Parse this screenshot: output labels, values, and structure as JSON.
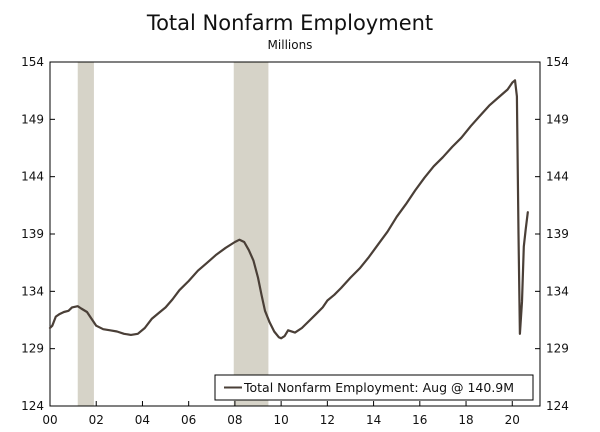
{
  "chart_data": {
    "type": "line",
    "title": "Total Nonfarm Employment",
    "subtitle": "Millions",
    "xlabel": "",
    "ylabel": "",
    "xlim": [
      2000.0,
      2021.2
    ],
    "ylim": [
      124,
      154
    ],
    "y_ticks": [
      124,
      129,
      134,
      139,
      144,
      149,
      154
    ],
    "x_ticks": [
      {
        "value": 2000,
        "label": "00"
      },
      {
        "value": 2002,
        "label": "02"
      },
      {
        "value": 2004,
        "label": "04"
      },
      {
        "value": 2006,
        "label": "06"
      },
      {
        "value": 2008,
        "label": "08"
      },
      {
        "value": 2010,
        "label": "10"
      },
      {
        "value": 2012,
        "label": "12"
      },
      {
        "value": 2014,
        "label": "14"
      },
      {
        "value": 2016,
        "label": "16"
      },
      {
        "value": 2018,
        "label": "18"
      },
      {
        "value": 2020,
        "label": "20"
      }
    ],
    "grid": false,
    "dual_y_axis": true,
    "legend_position": "bottom-right",
    "recessions": [
      {
        "start": 2001.2,
        "end": 2001.9
      },
      {
        "start": 2007.95,
        "end": 2009.45
      }
    ],
    "series": [
      {
        "name": "Total Nonfarm Employment: Aug @ 140.9M",
        "color": "#4a3f37",
        "points": [
          [
            2000.0,
            130.8
          ],
          [
            2000.1,
            131.0
          ],
          [
            2000.25,
            131.8
          ],
          [
            2000.4,
            132.0
          ],
          [
            2000.6,
            132.2
          ],
          [
            2000.8,
            132.3
          ],
          [
            2000.95,
            132.6
          ],
          [
            2001.2,
            132.7
          ],
          [
            2001.35,
            132.5
          ],
          [
            2001.6,
            132.2
          ],
          [
            2001.8,
            131.6
          ],
          [
            2002.0,
            131.0
          ],
          [
            2002.3,
            130.7
          ],
          [
            2002.6,
            130.6
          ],
          [
            2002.9,
            130.5
          ],
          [
            2003.2,
            130.3
          ],
          [
            2003.5,
            130.2
          ],
          [
            2003.8,
            130.3
          ],
          [
            2004.1,
            130.8
          ],
          [
            2004.4,
            131.6
          ],
          [
            2004.7,
            132.1
          ],
          [
            2005.0,
            132.6
          ],
          [
            2005.3,
            133.3
          ],
          [
            2005.6,
            134.1
          ],
          [
            2006.0,
            134.9
          ],
          [
            2006.4,
            135.8
          ],
          [
            2006.8,
            136.5
          ],
          [
            2007.2,
            137.2
          ],
          [
            2007.6,
            137.8
          ],
          [
            2008.0,
            138.3
          ],
          [
            2008.2,
            138.5
          ],
          [
            2008.4,
            138.3
          ],
          [
            2008.6,
            137.6
          ],
          [
            2008.8,
            136.7
          ],
          [
            2009.0,
            135.2
          ],
          [
            2009.15,
            133.7
          ],
          [
            2009.3,
            132.3
          ],
          [
            2009.5,
            131.3
          ],
          [
            2009.7,
            130.5
          ],
          [
            2009.9,
            130.0
          ],
          [
            2010.0,
            129.9
          ],
          [
            2010.15,
            130.1
          ],
          [
            2010.3,
            130.6
          ],
          [
            2010.6,
            130.4
          ],
          [
            2010.9,
            130.8
          ],
          [
            2011.2,
            131.4
          ],
          [
            2011.5,
            132.0
          ],
          [
            2011.8,
            132.6
          ],
          [
            2012.0,
            133.2
          ],
          [
            2012.3,
            133.7
          ],
          [
            2012.6,
            134.3
          ],
          [
            2013.0,
            135.2
          ],
          [
            2013.4,
            136.0
          ],
          [
            2013.8,
            137.0
          ],
          [
            2014.2,
            138.1
          ],
          [
            2014.6,
            139.2
          ],
          [
            2015.0,
            140.5
          ],
          [
            2015.4,
            141.6
          ],
          [
            2015.8,
            142.8
          ],
          [
            2016.2,
            143.9
          ],
          [
            2016.6,
            144.9
          ],
          [
            2017.0,
            145.7
          ],
          [
            2017.4,
            146.6
          ],
          [
            2017.8,
            147.4
          ],
          [
            2018.2,
            148.4
          ],
          [
            2018.6,
            149.3
          ],
          [
            2019.0,
            150.2
          ],
          [
            2019.4,
            150.9
          ],
          [
            2019.8,
            151.6
          ],
          [
            2020.0,
            152.2
          ],
          [
            2020.12,
            152.4
          ],
          [
            2020.2,
            151.0
          ],
          [
            2020.27,
            139.0
          ],
          [
            2020.33,
            130.3
          ],
          [
            2020.42,
            133.1
          ],
          [
            2020.5,
            137.9
          ],
          [
            2020.58,
            139.4
          ],
          [
            2020.67,
            140.9
          ]
        ]
      }
    ]
  }
}
